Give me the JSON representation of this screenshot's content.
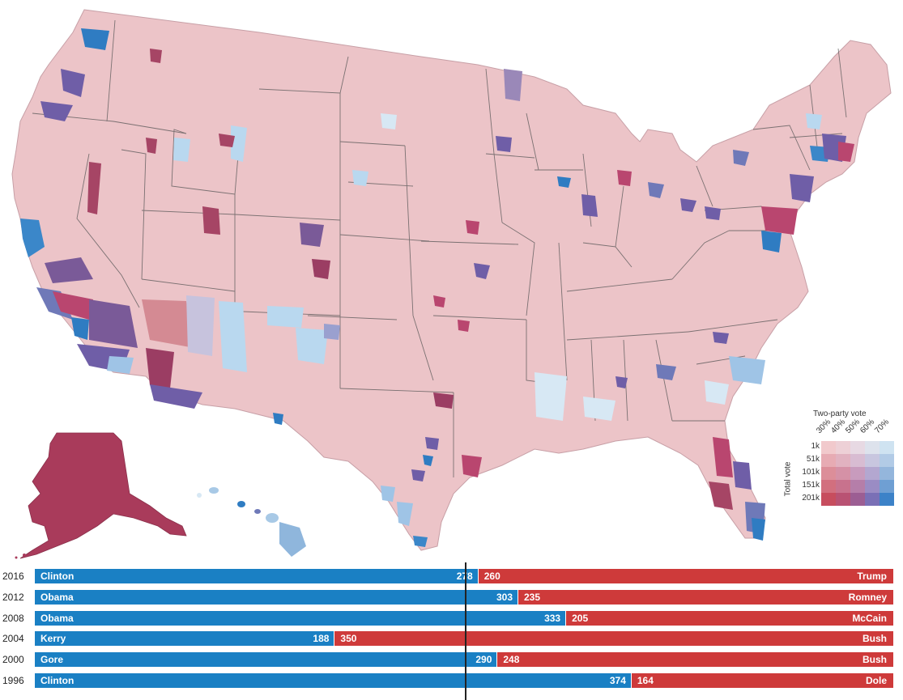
{
  "colors": {
    "dem": "#1a80c4",
    "rep": "#ce3a3a",
    "state_border": "#555555",
    "background": "#ffffff"
  },
  "legend": {
    "title": "Two-party vote",
    "percent_labels": [
      "30%",
      "40%",
      "50%",
      "60%",
      "70%"
    ],
    "total_vote_label": "Total vote",
    "total_vote_levels": [
      "1k",
      "51k",
      "101k",
      "151k",
      "201k"
    ],
    "color_grid": [
      [
        "#f1c9cc",
        "#edd0d6",
        "#e7d9e3",
        "#dde2ec",
        "#cfe3f1"
      ],
      [
        "#e7abb3",
        "#e1b2c0",
        "#d8bcd2",
        "#c8c6df",
        "#b2cbe6"
      ],
      [
        "#dc8e99",
        "#d591a6",
        "#c89bbd",
        "#b3a7d0",
        "#94b6dc"
      ],
      [
        "#d26f7e",
        "#c8728d",
        "#b57ea9",
        "#9a8cc4",
        "#6f9fd3"
      ],
      [
        "#c74d5e",
        "#b95273",
        "#9c5e93",
        "#7a70b6",
        "#3c82c8"
      ]
    ]
  },
  "chart_data": {
    "type": "bar",
    "title": "",
    "xlabel": "",
    "ylabel": "",
    "majority_line": 270,
    "total_electoral_votes": 538,
    "categories": [
      "2016",
      "2012",
      "2008",
      "2004",
      "2000",
      "1996"
    ],
    "series": [
      {
        "name": "Democratic",
        "candidates": [
          "Clinton",
          "Obama",
          "Obama",
          "Kerry",
          "Gore",
          "Clinton"
        ],
        "values": [
          278,
          303,
          333,
          188,
          290,
          374
        ],
        "value_labels": [
          "278",
          "303",
          "333",
          "188",
          "290",
          "374"
        ]
      },
      {
        "name": "Republican",
        "candidates": [
          "Trump",
          "Romney",
          "McCain",
          "Bush",
          "Bush",
          "Dole"
        ],
        "values": [
          260,
          235,
          205,
          350,
          248,
          164
        ],
        "value_labels": [
          "260",
          "235",
          "205",
          "350",
          "248",
          "164"
        ]
      }
    ]
  }
}
